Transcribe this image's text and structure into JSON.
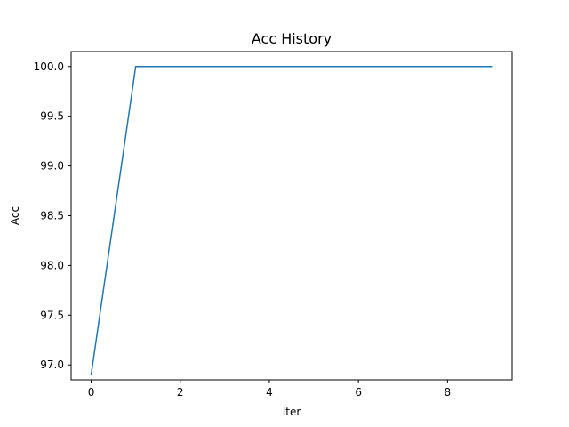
{
  "chart_data": {
    "type": "line",
    "title": "Acc History",
    "xlabel": "Iter",
    "ylabel": "Acc",
    "xlim": [
      -0.45,
      9.45
    ],
    "ylim": [
      96.85,
      100.15
    ],
    "xticks": [
      0,
      2,
      4,
      6,
      8
    ],
    "xtick_labels": [
      "0",
      "2",
      "4",
      "6",
      "8"
    ],
    "yticks": [
      97.0,
      97.5,
      98.0,
      98.5,
      99.0,
      99.5,
      100.0
    ],
    "ytick_labels": [
      "97.0",
      "97.5",
      "98.0",
      "98.5",
      "99.0",
      "99.5",
      "100.0"
    ],
    "grid": false,
    "series": [
      {
        "color": "#1f77b4",
        "x": [
          0,
          1,
          2,
          3,
          4,
          5,
          6,
          7,
          8,
          9
        ],
        "y": [
          96.9,
          100.0,
          100.0,
          100.0,
          100.0,
          100.0,
          100.0,
          100.0,
          100.0,
          100.0
        ]
      }
    ]
  }
}
